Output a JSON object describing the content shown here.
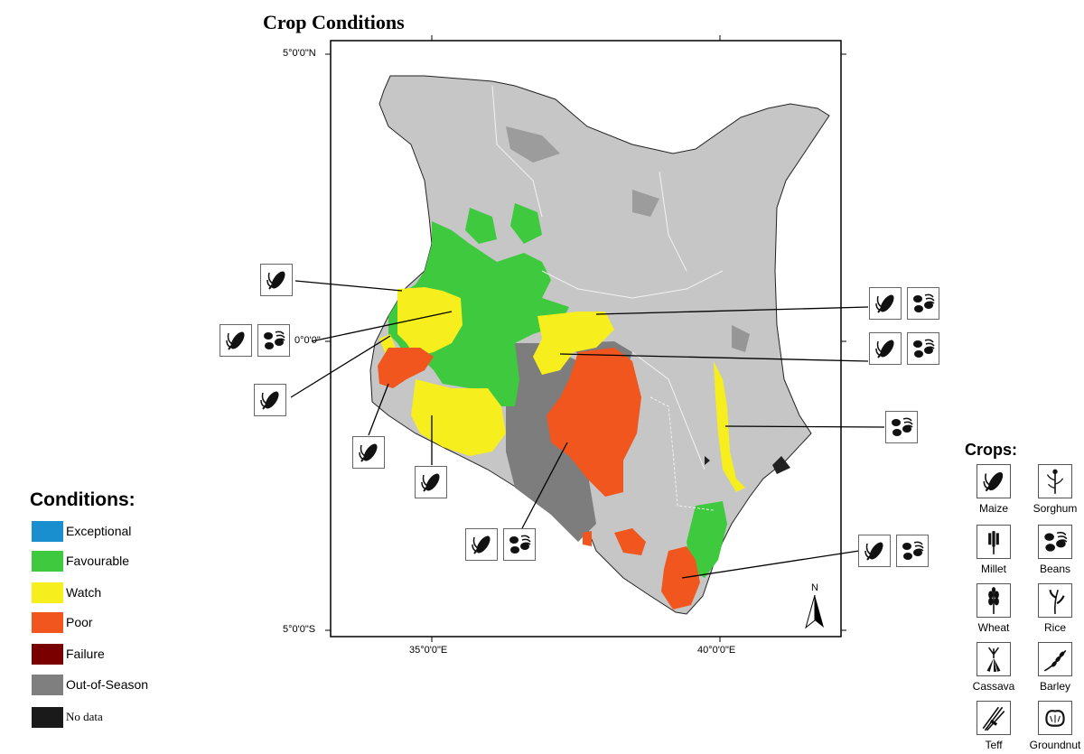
{
  "title": "Crop Conditions",
  "coordinates": {
    "lat_top": "5°0'0\"N",
    "lat_mid": "0°0'0\"",
    "lat_bottom": "5°0'0\"S",
    "lon_left": "35°0'0\"E",
    "lon_right": "40°0'0\"E"
  },
  "north_label": "N",
  "conditions": {
    "title": "Conditions:",
    "items": [
      {
        "label": "Exceptional",
        "color": "#1a8fd0"
      },
      {
        "label": "Favourable",
        "color": "#3ec93e"
      },
      {
        "label": "Watch",
        "color": "#f7ee1e"
      },
      {
        "label": "Poor",
        "color": "#f0561e"
      },
      {
        "label": "Failure",
        "color": "#7a0000"
      },
      {
        "label": "Out-of-Season",
        "color": "#7f7f7f"
      },
      {
        "label": "No data",
        "color": "#1a1a1a"
      }
    ]
  },
  "crops": {
    "title": "Crops:",
    "items": [
      {
        "label": "Maize",
        "icon": "maize-icon"
      },
      {
        "label": "Sorghum",
        "icon": "sorghum-icon"
      },
      {
        "label": "Millet",
        "icon": "millet-icon"
      },
      {
        "label": "Beans",
        "icon": "beans-icon"
      },
      {
        "label": "Wheat",
        "icon": "wheat-icon"
      },
      {
        "label": "Rice",
        "icon": "rice-icon"
      },
      {
        "label": "Cassava",
        "icon": "cassava-icon"
      },
      {
        "label": "Barley",
        "icon": "barley-icon"
      },
      {
        "label": "Teff",
        "icon": "teff-icon"
      },
      {
        "label": "Groundnut",
        "icon": "groundnut-icon"
      }
    ]
  },
  "map_colors": {
    "land": "#c8c8c8",
    "border": "#000000"
  }
}
